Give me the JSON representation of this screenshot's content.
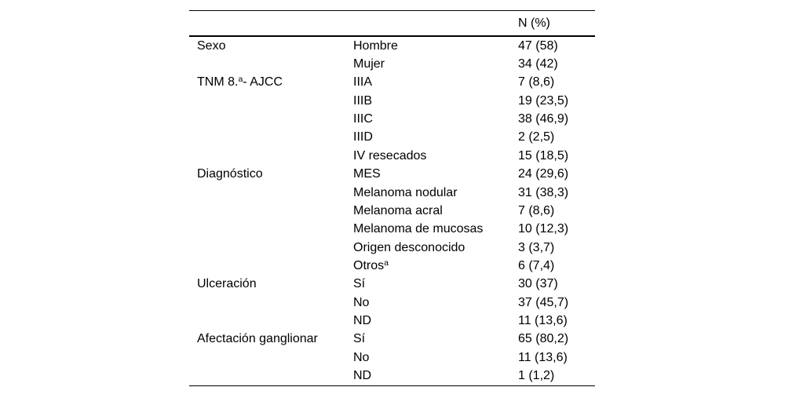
{
  "table": {
    "header": {
      "value_col": "N (%)"
    },
    "rows": [
      {
        "cat_pre": "Sexo",
        "cat_sup": "",
        "cat_post": "",
        "label_pre": "Hombre",
        "label_sup": "",
        "value": "47 (58)"
      },
      {
        "cat_pre": "",
        "cat_sup": "",
        "cat_post": "",
        "label_pre": "Mujer",
        "label_sup": "",
        "value": "34 (42)"
      },
      {
        "cat_pre": "TNM 8.",
        "cat_sup": "a",
        "cat_post": "- AJCC",
        "label_pre": "IIIA",
        "label_sup": "",
        "value": "7 (8,6)"
      },
      {
        "cat_pre": "",
        "cat_sup": "",
        "cat_post": "",
        "label_pre": "IIIB",
        "label_sup": "",
        "value": "19 (23,5)"
      },
      {
        "cat_pre": "",
        "cat_sup": "",
        "cat_post": "",
        "label_pre": "IIIC",
        "label_sup": "",
        "value": "38 (46,9)"
      },
      {
        "cat_pre": "",
        "cat_sup": "",
        "cat_post": "",
        "label_pre": "IIID",
        "label_sup": "",
        "value": "2 (2,5)"
      },
      {
        "cat_pre": "",
        "cat_sup": "",
        "cat_post": "",
        "label_pre": "IV resecados",
        "label_sup": "",
        "value": "15 (18,5)"
      },
      {
        "cat_pre": "Diagnóstico",
        "cat_sup": "",
        "cat_post": "",
        "label_pre": "MES",
        "label_sup": "",
        "value": "24 (29,6)"
      },
      {
        "cat_pre": "",
        "cat_sup": "",
        "cat_post": "",
        "label_pre": "Melanoma nodular",
        "label_sup": "",
        "value": "31 (38,3)"
      },
      {
        "cat_pre": "",
        "cat_sup": "",
        "cat_post": "",
        "label_pre": "Melanoma acral",
        "label_sup": "",
        "value": "7 (8,6)"
      },
      {
        "cat_pre": "",
        "cat_sup": "",
        "cat_post": "",
        "label_pre": "Melanoma de mucosas",
        "label_sup": "",
        "value": "10 (12,3)"
      },
      {
        "cat_pre": "",
        "cat_sup": "",
        "cat_post": "",
        "label_pre": "Origen desconocido",
        "label_sup": "",
        "value": "3 (3,7)"
      },
      {
        "cat_pre": "",
        "cat_sup": "",
        "cat_post": "",
        "label_pre": "Otros",
        "label_sup": "a",
        "value": "6 (7,4)"
      },
      {
        "cat_pre": "Ulceración",
        "cat_sup": "",
        "cat_post": "",
        "label_pre": "Sí",
        "label_sup": "",
        "value": "30 (37)"
      },
      {
        "cat_pre": "",
        "cat_sup": "",
        "cat_post": "",
        "label_pre": "No",
        "label_sup": "",
        "value": "37 (45,7)"
      },
      {
        "cat_pre": "",
        "cat_sup": "",
        "cat_post": "",
        "label_pre": "ND",
        "label_sup": "",
        "value": "11 (13,6)"
      },
      {
        "cat_pre": "Afectación ganglionar",
        "cat_sup": "",
        "cat_post": "",
        "label_pre": "Sí",
        "label_sup": "",
        "value": "65 (80,2)"
      },
      {
        "cat_pre": "",
        "cat_sup": "",
        "cat_post": "",
        "label_pre": "No",
        "label_sup": "",
        "value": "11 (13,6)"
      },
      {
        "cat_pre": "",
        "cat_sup": "",
        "cat_post": "",
        "label_pre": "ND",
        "label_sup": "",
        "value": "1 (1,2)"
      }
    ]
  }
}
